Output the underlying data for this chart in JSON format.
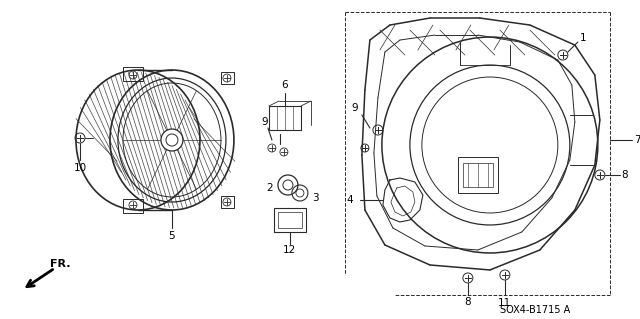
{
  "bg_color": "#ffffff",
  "line_color": "#2a2a2a",
  "code_text": "SOX4-B1715 A",
  "fig_width": 6.4,
  "fig_height": 3.19,
  "dpi": 100
}
